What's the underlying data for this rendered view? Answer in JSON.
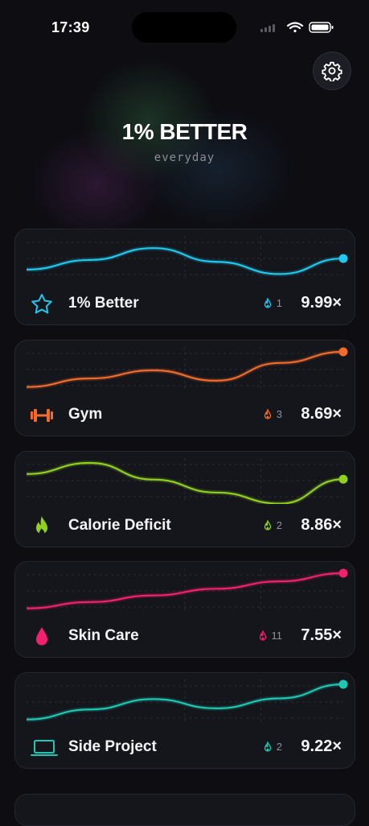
{
  "status": {
    "time": "17:39"
  },
  "header": {
    "title": "1% BETTER",
    "subtitle": "everyday"
  },
  "colors": {
    "background": "#0d0d12",
    "card": "#15161c"
  },
  "habits": [
    {
      "name": "1% Better",
      "streak": "1",
      "multiplier": "9.99×",
      "color": "#1ec8ef",
      "icon": "star-icon",
      "trend": [
        0.22,
        0.48,
        0.8,
        0.43,
        0.1,
        0.52
      ]
    },
    {
      "name": "Gym",
      "streak": "3",
      "multiplier": "8.69×",
      "color": "#f26b2a",
      "icon": "dumbbell-icon",
      "trend": [
        0.05,
        0.28,
        0.5,
        0.22,
        0.7,
        1.0
      ]
    },
    {
      "name": "Calorie Deficit",
      "streak": "2",
      "multiplier": "8.86×",
      "color": "#8fd11e",
      "icon": "flame-icon",
      "trend": [
        0.7,
        1.0,
        0.55,
        0.2,
        -0.1,
        0.56
      ]
    },
    {
      "name": "Skin Care",
      "streak": "11",
      "multiplier": "7.55×",
      "color": "#f2206e",
      "icon": "drop-icon",
      "trend": [
        0.05,
        0.22,
        0.4,
        0.58,
        0.78,
        1.0
      ]
    },
    {
      "name": "Side Project",
      "streak": "2",
      "multiplier": "9.22×",
      "color": "#1cc8b4",
      "icon": "laptop-icon",
      "trend": [
        0.05,
        0.32,
        0.6,
        0.35,
        0.62,
        1.0
      ]
    }
  ]
}
